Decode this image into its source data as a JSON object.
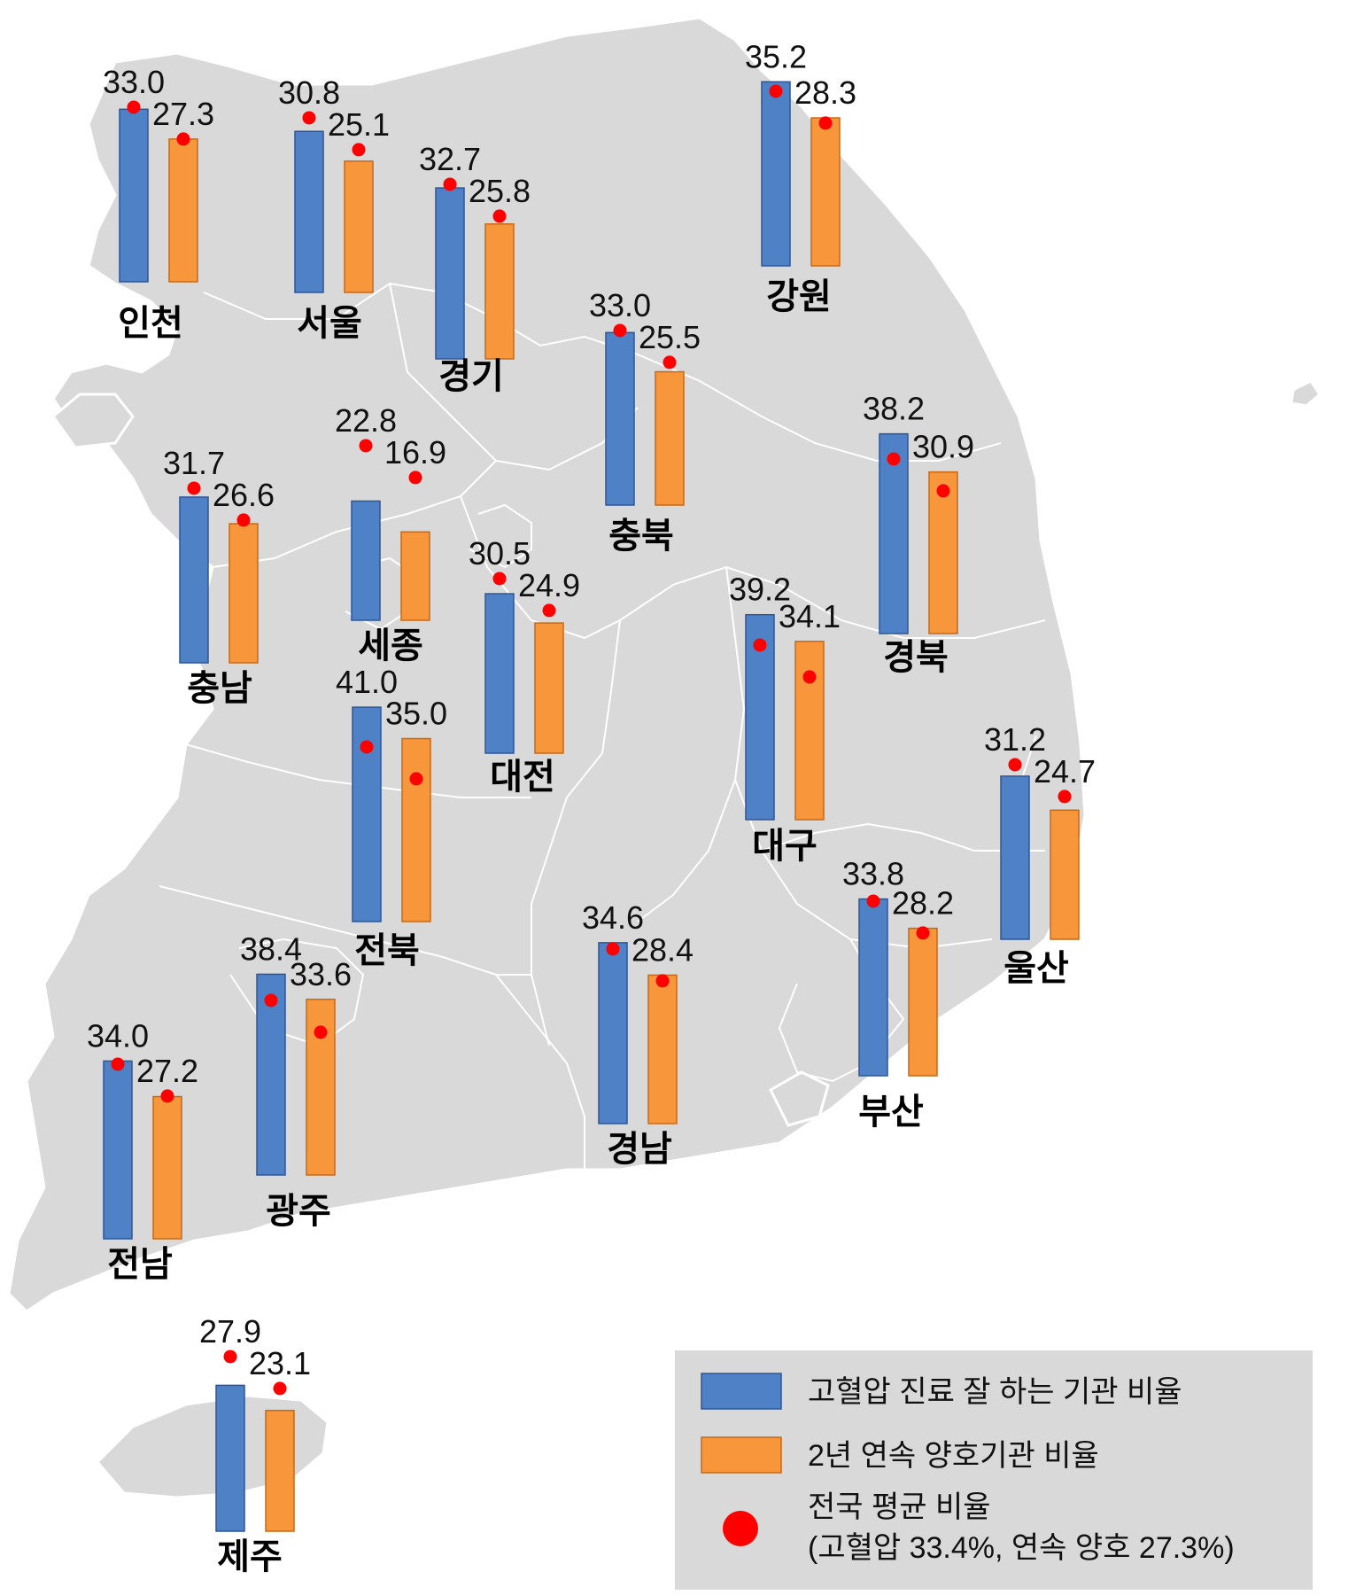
{
  "colors": {
    "map_fill": "#d9d9d9",
    "bar_blue": "#4f81c7",
    "bar_orange": "#f7963b",
    "avg_dot": "#ff0000",
    "legend_bg": "#d9d9d9"
  },
  "chart_data": {
    "type": "bar",
    "series": [
      {
        "name": "고혈압 진료 잘 하는 기관 비율",
        "color": "#4f81c7"
      },
      {
        "name": "2년 연속 양호기관 비율",
        "color": "#f7963b"
      }
    ],
    "national_average": {
      "label": "전국 평균 비율",
      "detail": "(고혈압 33.4%, 연속 양호 27.3%)",
      "hypertension": 33.4,
      "consecutive_good": 27.3
    },
    "regions": [
      {
        "name": "인천",
        "blue": 33.0,
        "blue_label": "33.0",
        "orange": 27.3,
        "orange_label": "27.3"
      },
      {
        "name": "서울",
        "blue": 30.8,
        "blue_label": "30.8",
        "orange": 25.1,
        "orange_label": "25.1"
      },
      {
        "name": "경기",
        "blue": 32.7,
        "blue_label": "32.7",
        "orange": 25.8,
        "orange_label": "25.8"
      },
      {
        "name": "강원",
        "blue": 35.2,
        "blue_label": "35.2",
        "orange": 28.3,
        "orange_label": "28.3"
      },
      {
        "name": "충북",
        "blue": 33.0,
        "blue_label": "33.0",
        "orange": 25.5,
        "orange_label": "25.5"
      },
      {
        "name": "충남",
        "blue": 31.7,
        "blue_label": "31.7",
        "orange": 26.6,
        "orange_label": "26.6"
      },
      {
        "name": "세종",
        "blue": 22.8,
        "blue_label": "22.8",
        "orange": 16.9,
        "orange_label": "16.9"
      },
      {
        "name": "대전",
        "blue": 30.5,
        "blue_label": "30.5",
        "orange": 24.9,
        "orange_label": "24.9"
      },
      {
        "name": "경북",
        "blue": 38.2,
        "blue_label": "38.2",
        "orange": 30.9,
        "orange_label": "30.9"
      },
      {
        "name": "대구",
        "blue": 39.2,
        "blue_label": "39.2",
        "orange": 34.1,
        "orange_label": "34.1"
      },
      {
        "name": "전북",
        "blue": 41.0,
        "blue_label": "41.0",
        "orange": 35.0,
        "orange_label": "35.0"
      },
      {
        "name": "울산",
        "blue": 31.2,
        "blue_label": "31.2",
        "orange": 24.7,
        "orange_label": "24.7"
      },
      {
        "name": "경남",
        "blue": 34.6,
        "blue_label": "34.6",
        "orange": 28.4,
        "orange_label": "28.4"
      },
      {
        "name": "부산",
        "blue": 33.8,
        "blue_label": "33.8",
        "orange": 28.2,
        "orange_label": "28.2"
      },
      {
        "name": "광주",
        "blue": 38.4,
        "blue_label": "38.4",
        "orange": 33.6,
        "orange_label": "33.6"
      },
      {
        "name": "전남",
        "blue": 34.0,
        "blue_label": "34.0",
        "orange": 27.2,
        "orange_label": "27.2"
      },
      {
        "name": "제주",
        "blue": 27.9,
        "blue_label": "27.9",
        "orange": 23.1,
        "orange_label": "23.1"
      }
    ]
  }
}
